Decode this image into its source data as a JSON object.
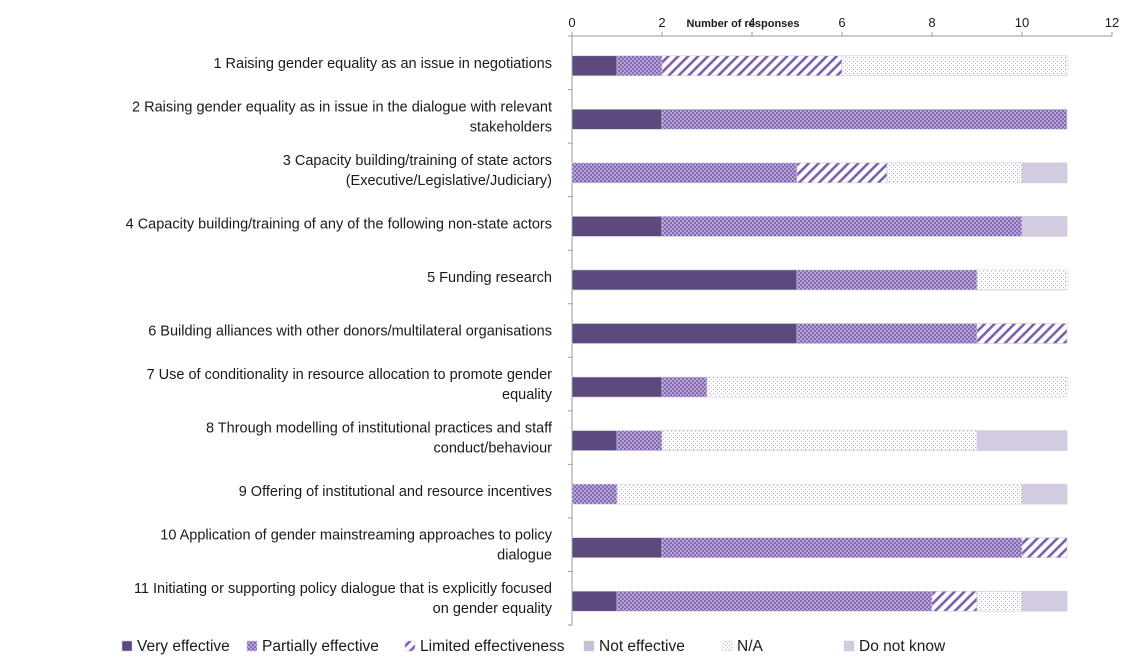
{
  "chart_data": {
    "type": "bar",
    "orientation": "horizontal",
    "stacked": true,
    "xlabel": "Number of responses",
    "xlim": [
      0,
      12
    ],
    "xticks": [
      0,
      2,
      4,
      6,
      8,
      10,
      12
    ],
    "axis_position": "top",
    "grid": false,
    "legend_position": "bottom",
    "categories": [
      [
        "1 Raising gender equality as an issue in negotiations"
      ],
      [
        "2 Raising gender equality as in issue in the dialogue with relevant",
        "stakeholders"
      ],
      [
        "3 Capacity building/training of state actors",
        "(Executive/Legislative/Judiciary)"
      ],
      [
        "4 Capacity building/training of any of the following non-state actors"
      ],
      [
        "5 Funding research"
      ],
      [
        "6 Building alliances with other donors/multilateral organisations"
      ],
      [
        "7 Use of conditionality in resource allocation to promote gender",
        "equality"
      ],
      [
        "8 Through modelling of institutional practices and staff",
        "conduct/behaviour"
      ],
      [
        "9 Offering of institutional and resource incentives"
      ],
      [
        "10 Application of gender mainstreaming approaches to policy",
        "dialogue"
      ],
      [
        "11 Initiating or supporting policy dialogue that is explicitly focused",
        "on gender equality"
      ]
    ],
    "series": [
      {
        "name": "Very effective",
        "color": "#5c4a7e",
        "pattern": "solid",
        "values": [
          1,
          2,
          0,
          2,
          5,
          5,
          2,
          1,
          0,
          2,
          1
        ]
      },
      {
        "name": "Partially effective",
        "color": "#9a82c2",
        "pattern": "checker",
        "values": [
          1,
          9,
          5,
          8,
          4,
          4,
          1,
          1,
          1,
          8,
          7
        ]
      },
      {
        "name": "Limited effectiveness",
        "color": "#7b5fb0",
        "pattern": "diagonal",
        "values": [
          4,
          0,
          2,
          0,
          0,
          2,
          0,
          0,
          0,
          1,
          1
        ]
      },
      {
        "name": "Not effective",
        "color": "#c9bfd9",
        "pattern": "solid",
        "values": [
          0,
          0,
          0,
          0,
          0,
          0,
          0,
          0,
          0,
          0,
          0
        ]
      },
      {
        "name": "N/A",
        "color": "#b8b0c4",
        "pattern": "dots",
        "values": [
          5,
          0,
          3,
          0,
          2,
          0,
          8,
          7,
          9,
          0,
          1
        ]
      },
      {
        "name": "Do not know",
        "color": "#d3cbe0",
        "pattern": "solid",
        "values": [
          0,
          0,
          1,
          1,
          0,
          0,
          0,
          2,
          1,
          0,
          1
        ]
      }
    ]
  }
}
